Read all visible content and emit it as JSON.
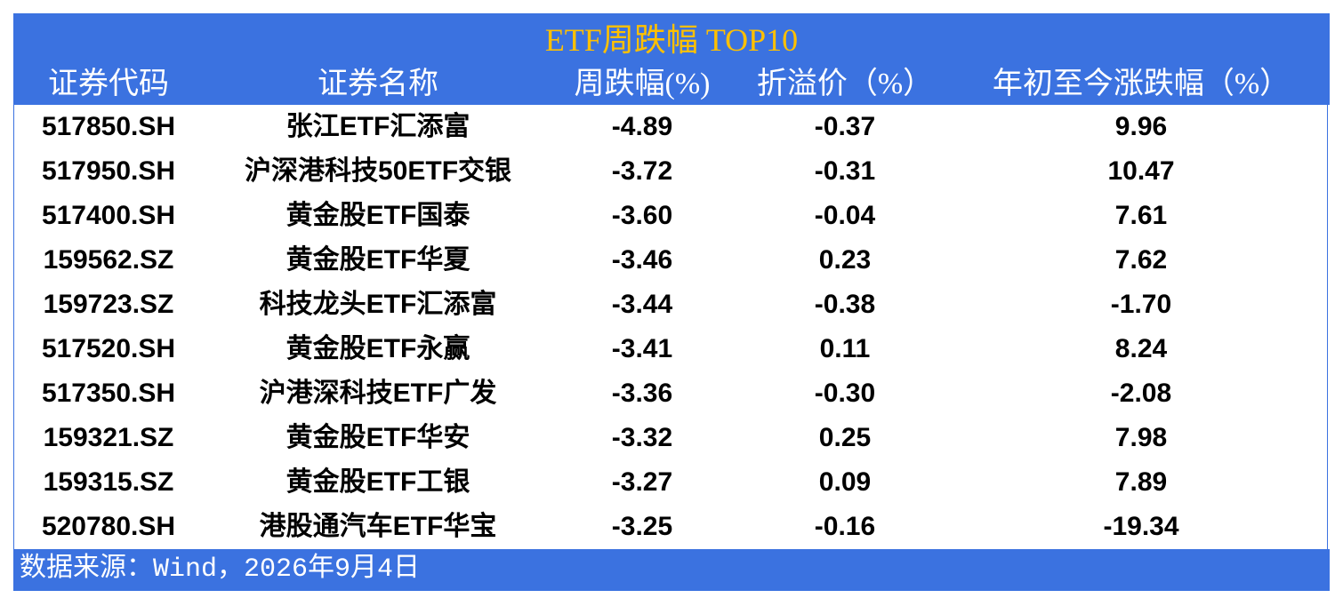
{
  "table": {
    "title": "ETF周跌幅 TOP10",
    "headers": [
      "证券代码",
      "证券名称",
      "周跌幅(%)",
      "折溢价（%）",
      "年初至今涨跌幅（%）"
    ],
    "rows": [
      [
        "517850.SH",
        "张江ETF汇添富",
        "-4.89",
        "-0.37",
        "9.96"
      ],
      [
        "517950.SH",
        "沪深港科技50ETF交银",
        "-3.72",
        "-0.31",
        "10.47"
      ],
      [
        "517400.SH",
        "黄金股ETF国泰",
        "-3.60",
        "-0.04",
        "7.61"
      ],
      [
        "159562.SZ",
        "黄金股ETF华夏",
        "-3.46",
        "0.23",
        "7.62"
      ],
      [
        "159723.SZ",
        "科技龙头ETF汇添富",
        "-3.44",
        "-0.38",
        "-1.70"
      ],
      [
        "517520.SH",
        "黄金股ETF永赢",
        "-3.41",
        "0.11",
        "8.24"
      ],
      [
        "517350.SH",
        "沪港深科技ETF广发",
        "-3.36",
        "-0.30",
        "-2.08"
      ],
      [
        "159321.SZ",
        "黄金股ETF华安",
        "-3.32",
        "0.25",
        "7.98"
      ],
      [
        "159315.SZ",
        "黄金股ETF工银",
        "-3.27",
        "0.09",
        "7.89"
      ],
      [
        "520780.SH",
        "港股通汽车ETF华宝",
        "-3.25",
        "-0.16",
        "-19.34"
      ]
    ],
    "source": "数据来源：Wind，2026年9月4日"
  }
}
